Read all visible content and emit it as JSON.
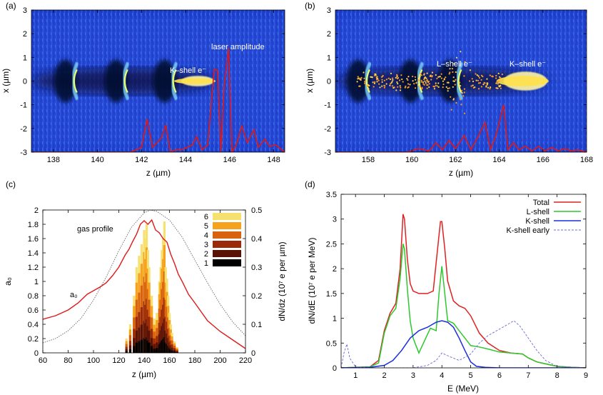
{
  "chart_data": [
    {
      "panel_label": "(a)",
      "type": "heatmap",
      "xlabel": "z (µm)",
      "ylabel": "x (µm)",
      "xlim": [
        137,
        148.5
      ],
      "ylim": [
        -3,
        3
      ],
      "xticks": [
        138,
        140,
        142,
        144,
        146,
        148
      ],
      "yticks": [
        -3,
        -2,
        -1,
        0,
        1,
        2,
        3
      ],
      "annotations": [
        "laser amplitude",
        "K–shell e⁻"
      ],
      "bubble_centers_z": [
        139,
        141.3,
        143.5
      ],
      "bunch": {
        "z_range": [
          143.8,
          145.3
        ],
        "x_half_width": 0.22
      },
      "laser_line": {
        "z": [
          137,
          141.5,
          142.0,
          142.25,
          142.5,
          142.9,
          143.1,
          143.3,
          143.55,
          143.8,
          144.3,
          144.5,
          144.75,
          145.0,
          145.3,
          145.45,
          145.6,
          145.75,
          145.95,
          146.1,
          146.3,
          146.55,
          146.8,
          147.1,
          147.3,
          147.6,
          147.8,
          148.1,
          148.3,
          148.5
        ],
        "x": [
          -3,
          -3,
          -2.8,
          -1.6,
          -2.8,
          -2.4,
          -1.85,
          -3,
          -2.9,
          -2.9,
          -2.7,
          -2.35,
          -2.9,
          -2.7,
          0.5,
          0.45,
          -3,
          -0.2,
          1.4,
          -3,
          -2.7,
          -1.9,
          -2.6,
          -2.05,
          -2.8,
          -2.45,
          -2.75,
          -2.7,
          -2.85,
          -3
        ]
      }
    },
    {
      "panel_label": "(b)",
      "type": "heatmap",
      "xlabel": "z (µm)",
      "ylabel": "x (µm)",
      "xlim": [
        156.5,
        168
      ],
      "ylim": [
        -3,
        3
      ],
      "xticks": [
        158,
        160,
        162,
        164,
        166,
        168
      ],
      "yticks": [
        -3,
        -2,
        -1,
        0,
        1,
        2,
        3
      ],
      "annotations": [
        "L–shell e⁻",
        "K–shell e⁻"
      ],
      "bubble_centers_z": [
        158,
        160.4,
        162.2
      ],
      "bunch": {
        "z_range": [
          164.2,
          166.2
        ],
        "x_half_width": 0.4
      },
      "laser_line": {
        "z": [
          156.5,
          159.8,
          160.3,
          160.8,
          161.1,
          161.4,
          161.7,
          162.0,
          162.4,
          162.7,
          163.0,
          163.35,
          163.6,
          163.85,
          164.2,
          164.4,
          164.65,
          164.9,
          165.2,
          165.5,
          165.8,
          166.1,
          166.4,
          166.7,
          167.0,
          167.3,
          167.6,
          168
        ],
        "x": [
          -3,
          -3,
          -2.85,
          -2.95,
          -2.6,
          -2.9,
          -2.5,
          -2.85,
          -2.3,
          -2.9,
          -2.4,
          -1.75,
          -2.9,
          -2.3,
          -1.0,
          -2.9,
          -2.6,
          -2.9,
          -2.75,
          -2.95,
          -2.75,
          -2.95,
          -2.8,
          -2.95,
          -2.85,
          -2.95,
          -2.9,
          -3
        ]
      }
    },
    {
      "panel_label": "(c)",
      "type": "line",
      "xlabel": "z (µm)",
      "ylabel": "a₀",
      "ylabel_right": "dN/dz (10⁷ e per µm)",
      "xlim": [
        60,
        220
      ],
      "ylim": [
        0,
        2
      ],
      "ylim_right": [
        0,
        0.5
      ],
      "xticks": [
        60,
        80,
        100,
        120,
        140,
        160,
        180,
        200,
        220
      ],
      "yticks": [
        0,
        0.2,
        0.4,
        0.6,
        0.8,
        1,
        1.2,
        1.4,
        1.6,
        1.8,
        2
      ],
      "yticks_right": [
        0,
        0.1,
        0.2,
        0.3,
        0.4,
        0.5
      ],
      "annotations": [
        "gas profile",
        "a₀"
      ],
      "legend": [
        "6",
        "5",
        "4",
        "3",
        "2",
        "1"
      ],
      "legend_colors": [
        "#f5e070",
        "#f6a21d",
        "#d9620f",
        "#9b2a08",
        "#5a1206",
        "#000000"
      ],
      "series": [
        {
          "name": "a₀",
          "x": [
            60,
            70,
            80,
            88,
            95,
            100,
            105,
            110,
            115,
            120,
            125,
            128,
            131,
            134,
            137,
            140,
            143,
            146,
            149,
            152,
            155,
            158,
            161,
            164,
            167,
            170,
            175,
            180,
            190,
            200,
            210,
            220
          ],
          "y": [
            0.47,
            0.52,
            0.6,
            0.7,
            0.82,
            0.87,
            0.92,
            0.98,
            1.08,
            1.2,
            1.37,
            1.45,
            1.56,
            1.66,
            1.8,
            1.85,
            1.8,
            1.86,
            1.72,
            1.68,
            1.6,
            1.55,
            1.38,
            1.25,
            1.1,
            1.0,
            0.82,
            0.7,
            0.45,
            0.3,
            0.18,
            0.06
          ]
        },
        {
          "name": "gas profile",
          "x": [
            60,
            70,
            80,
            90,
            100,
            110,
            120,
            130,
            140,
            145,
            150,
            160,
            170,
            180,
            190,
            200,
            210,
            220
          ],
          "y": [
            0.14,
            0.2,
            0.31,
            0.48,
            0.74,
            1.06,
            1.43,
            1.76,
            1.96,
            2.0,
            1.98,
            1.86,
            1.62,
            1.3,
            0.98,
            0.68,
            0.43,
            0.24
          ]
        }
      ],
      "histogram": {
        "z": [
          126,
          129,
          132,
          134,
          136,
          138,
          140,
          141,
          142,
          143,
          144,
          146,
          148,
          150,
          152,
          153,
          154,
          155,
          156,
          157,
          158,
          159,
          160,
          161,
          162,
          164,
          166
        ],
        "dndz": [
          0.05,
          0.1,
          0.2,
          0.3,
          0.34,
          0.38,
          0.43,
          0.4,
          0.45,
          0.36,
          0.3,
          0.2,
          0.12,
          0.14,
          0.25,
          0.3,
          0.36,
          0.4,
          0.46,
          0.3,
          0.26,
          0.2,
          0.14,
          0.1,
          0.07,
          0.04,
          0.02
        ]
      }
    },
    {
      "panel_label": "(d)",
      "type": "line",
      "xlabel": "E (MeV)",
      "ylabel": "dN/dE (10⁷ e per MeV)",
      "xlim": [
        0.5,
        9
      ],
      "ylim": [
        0,
        3.5
      ],
      "xticks": [
        1,
        2,
        3,
        4,
        5,
        6,
        7,
        8,
        9
      ],
      "yticks": [
        0,
        0.5,
        1,
        1.5,
        2,
        2.5,
        3,
        3.5
      ],
      "legend_position": "top-right",
      "series": [
        {
          "name": "Total",
          "color": "#e02020",
          "x": [
            0.5,
            1.5,
            1.8,
            2.0,
            2.2,
            2.4,
            2.55,
            2.65,
            2.7,
            2.8,
            2.9,
            3.0,
            3.2,
            3.5,
            3.7,
            3.85,
            3.95,
            4.0,
            4.1,
            4.2,
            4.4,
            4.6,
            4.8,
            5.0,
            5.3,
            5.6,
            6.0,
            6.4,
            6.8,
            7.0,
            7.3,
            7.6,
            8.0,
            8.5,
            9
          ],
          "y": [
            0,
            0.02,
            0.15,
            0.75,
            1.1,
            1.3,
            2.0,
            3.1,
            3.0,
            2.2,
            1.7,
            1.55,
            1.5,
            1.5,
            1.55,
            2.4,
            2.95,
            2.95,
            2.4,
            1.75,
            1.35,
            1.25,
            1.2,
            1.05,
            0.7,
            0.5,
            0.35,
            0.3,
            0.28,
            0.2,
            0.12,
            0.08,
            0.03,
            0.01,
            0
          ]
        },
        {
          "name": "L-shell",
          "color": "#2ec82e",
          "x": [
            0.5,
            1.5,
            1.8,
            2.0,
            2.2,
            2.4,
            2.55,
            2.65,
            2.7,
            2.8,
            2.9,
            3.0,
            3.2,
            3.4,
            3.6,
            3.8,
            3.9,
            4.0,
            4.1,
            4.2,
            4.4,
            4.6,
            4.8,
            5.0,
            5.3,
            5.6,
            6.0,
            6.4,
            6.8,
            7.0,
            7.3,
            7.6,
            8.0,
            8.5,
            9
          ],
          "y": [
            0,
            0.02,
            0.1,
            0.7,
            1.05,
            1.2,
            1.8,
            2.5,
            2.4,
            1.6,
            0.95,
            0.6,
            0.3,
            0.55,
            0.8,
            0.75,
            1.5,
            2.05,
            1.5,
            0.95,
            0.9,
            0.75,
            0.6,
            0.45,
            0.42,
            0.38,
            0.32,
            0.3,
            0.28,
            0.2,
            0.12,
            0.08,
            0.03,
            0.01,
            0
          ]
        },
        {
          "name": "K-shell",
          "color": "#1a2ee0",
          "x": [
            0.5,
            1.5,
            2.0,
            2.3,
            2.6,
            2.9,
            3.2,
            3.5,
            3.8,
            4.0,
            4.2,
            4.4,
            4.6,
            4.8,
            5.0,
            5.2,
            5.5,
            6.0,
            9
          ],
          "y": [
            0,
            0.01,
            0.05,
            0.15,
            0.35,
            0.6,
            0.75,
            0.82,
            0.92,
            0.95,
            0.92,
            0.82,
            0.6,
            0.35,
            0.12,
            0.03,
            0.01,
            0,
            0
          ]
        },
        {
          "name": "K-shell early",
          "color": "#6a6adc",
          "x": [
            0.5,
            0.6,
            0.7,
            0.8,
            1.0,
            1.5,
            3.0,
            3.5,
            3.8,
            4.0,
            4.3,
            4.6,
            5.0,
            5.3,
            5.6,
            6.0,
            6.3,
            6.5,
            6.7,
            7.0,
            7.3,
            7.6,
            8.0,
            9
          ],
          "y": [
            0,
            0.3,
            0.48,
            0.2,
            0.02,
            0,
            0,
            0.05,
            0.15,
            0.3,
            0.22,
            0.15,
            0.28,
            0.5,
            0.65,
            0.78,
            0.88,
            0.95,
            0.85,
            0.6,
            0.35,
            0.15,
            0.03,
            0
          ]
        }
      ]
    }
  ]
}
